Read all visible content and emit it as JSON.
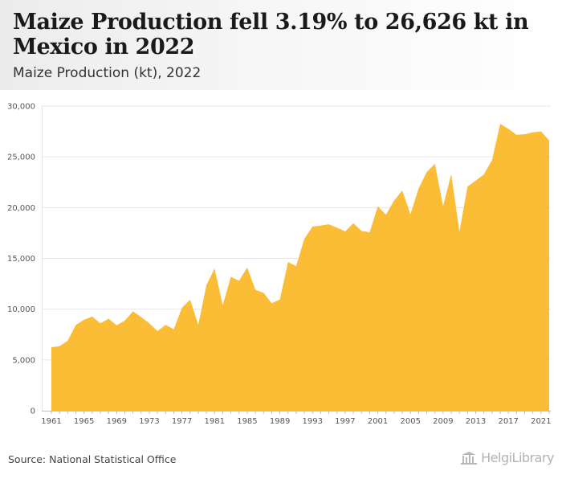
{
  "header": {
    "title": "Maize Production fell 3.19% to 26,626 kt in Mexico in 2022",
    "subtitle": "Maize Production (kt), 2022"
  },
  "footer": {
    "source": "Source: National Statistical Office",
    "logo_text": "HelgiLibrary",
    "logo_icon": "building-columns-icon"
  },
  "chart_data": {
    "type": "area",
    "color": "#fbbd35",
    "grid": true,
    "legend": "none",
    "ylim": [
      0,
      30000
    ],
    "yticks": [
      0,
      5000,
      10000,
      15000,
      20000,
      25000,
      30000
    ],
    "ytick_labels": [
      "0",
      "5,000",
      "10,000",
      "15,000",
      "20,000",
      "25,000",
      "30,000"
    ],
    "xticks": [
      1961,
      1965,
      1969,
      1973,
      1977,
      1981,
      1985,
      1989,
      1993,
      1997,
      2001,
      2005,
      2009,
      2013,
      2017,
      2021
    ],
    "x": [
      1961,
      1962,
      1963,
      1964,
      1965,
      1966,
      1967,
      1968,
      1969,
      1970,
      1971,
      1972,
      1973,
      1974,
      1975,
      1976,
      1977,
      1978,
      1979,
      1980,
      1981,
      1982,
      1983,
      1984,
      1985,
      1986,
      1987,
      1988,
      1989,
      1990,
      1991,
      1992,
      1993,
      1994,
      1995,
      1996,
      1997,
      1998,
      1999,
      2000,
      2001,
      2002,
      2003,
      2004,
      2005,
      2006,
      2007,
      2008,
      2009,
      2010,
      2011,
      2012,
      2013,
      2014,
      2015,
      2016,
      2017,
      2018,
      2019,
      2020,
      2021,
      2022
    ],
    "values": [
      6250,
      6350,
      6900,
      8450,
      8950,
      9270,
      8600,
      9060,
      8410,
      8880,
      9790,
      9220,
      8610,
      7850,
      8450,
      8020,
      10140,
      10930,
      8460,
      12370,
      14010,
      10390,
      13190,
      12790,
      14100,
      11910,
      11610,
      10590,
      10950,
      14630,
      14250,
      16930,
      18130,
      18240,
      18350,
      18030,
      17660,
      18450,
      17710,
      17560,
      20130,
      19300,
      20700,
      21680,
      19340,
      21890,
      23510,
      24320,
      20140,
      23300,
      17640,
      22070,
      22660,
      23270,
      24690,
      28250,
      27760,
      27170,
      27230,
      27420,
      27500,
      26626
    ]
  }
}
